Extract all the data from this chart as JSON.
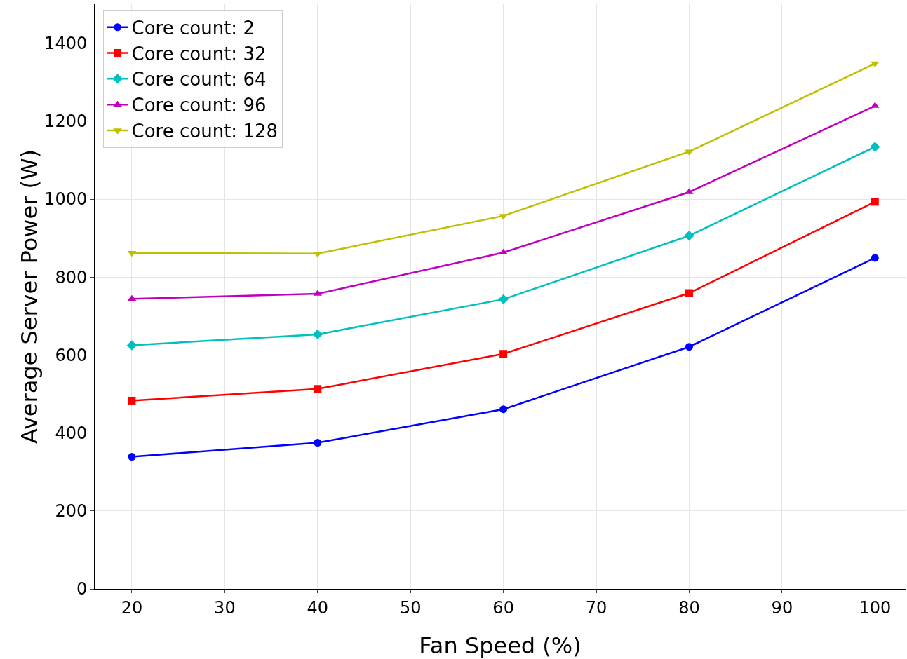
{
  "chart_data": {
    "type": "line",
    "xlabel": "Fan Speed (%)",
    "ylabel": "Average Server Power (W)",
    "x": [
      20,
      40,
      60,
      80,
      100
    ],
    "series": [
      {
        "name": "Core count: 2",
        "color": "#0000ff",
        "marker": "circle",
        "values": [
          339,
          375,
          461,
          621,
          849
        ]
      },
      {
        "name": "Core count: 32",
        "color": "#ff0000",
        "marker": "square",
        "values": [
          483,
          513,
          603,
          759,
          993
        ]
      },
      {
        "name": "Core count: 64",
        "color": "#00bfbf",
        "marker": "diamond",
        "values": [
          625,
          653,
          743,
          906,
          1134
        ]
      },
      {
        "name": "Core count: 96",
        "color": "#bf00bf",
        "marker": "triangle",
        "values": [
          744,
          757,
          863,
          1018,
          1239
        ]
      },
      {
        "name": "Core count: 128",
        "color": "#bfbf00",
        "marker": "triangle-down",
        "values": [
          862,
          860,
          957,
          1122,
          1348
        ]
      }
    ],
    "xlim": [
      16,
      103.3
    ],
    "xticks": [
      20,
      30,
      40,
      50,
      60,
      70,
      80,
      90,
      100
    ],
    "ylim": [
      0,
      1500
    ],
    "yticks": [
      0,
      200,
      400,
      600,
      800,
      1000,
      1200,
      1400
    ],
    "grid": true,
    "legend": "top left",
    "line_style": "solid"
  }
}
